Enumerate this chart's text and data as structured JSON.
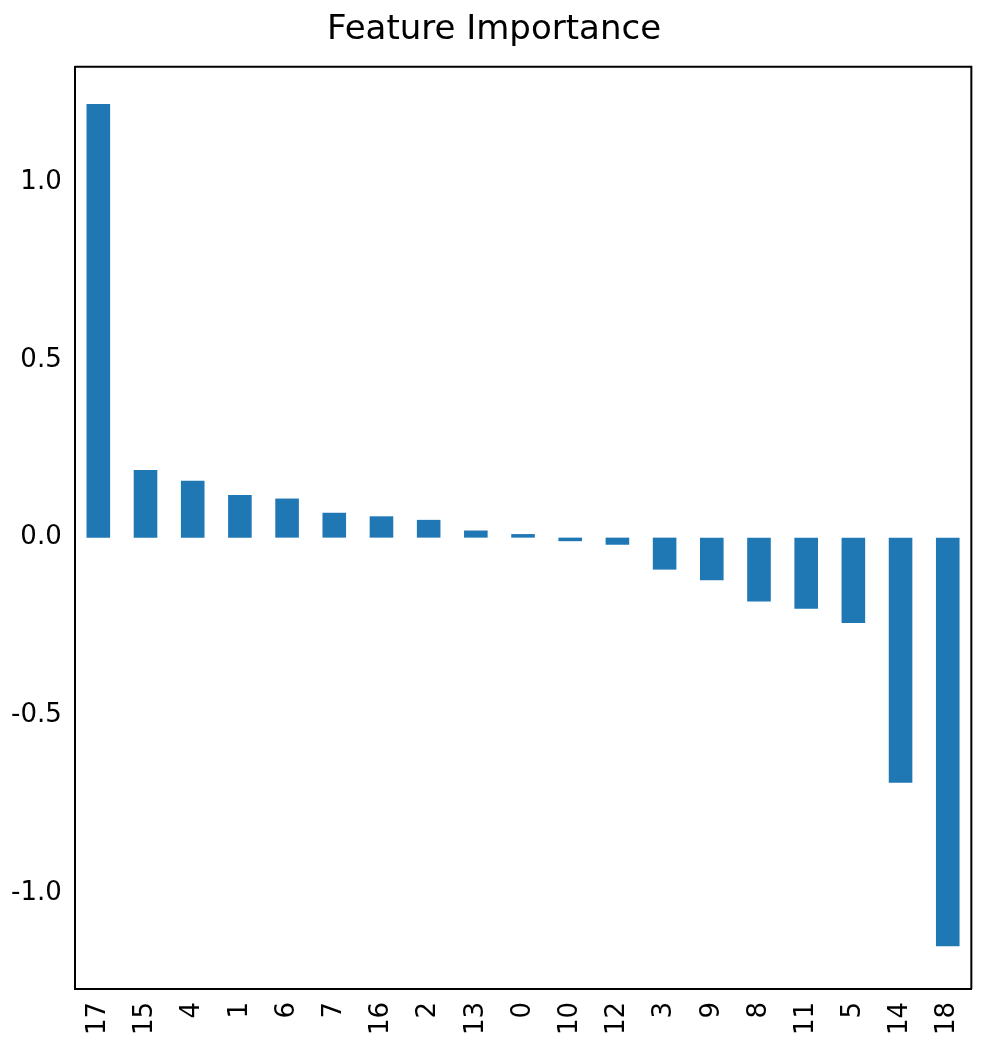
{
  "chart_data": {
    "type": "bar",
    "title": "Feature Importance",
    "categories": [
      "17",
      "15",
      "4",
      "1",
      "6",
      "7",
      "16",
      "2",
      "13",
      "0",
      "10",
      "12",
      "3",
      "9",
      "8",
      "11",
      "5",
      "14",
      "18"
    ],
    "values": [
      1.22,
      0.19,
      0.16,
      0.12,
      0.11,
      0.07,
      0.06,
      0.05,
      0.02,
      0.01,
      -0.01,
      -0.02,
      -0.09,
      -0.12,
      -0.18,
      -0.2,
      -0.24,
      -0.69,
      -1.15
    ],
    "color": "#1f77b4",
    "ylim": [
      -1.27,
      1.325
    ],
    "yticks": [
      {
        "value": -1,
        "label": "-1.0"
      },
      -0.5,
      {
        "value": 0,
        "label": "0.0"
      },
      0.5,
      {
        "value": 1,
        "label": "1.0"
      }
    ],
    "grid": false,
    "legend": false
  }
}
